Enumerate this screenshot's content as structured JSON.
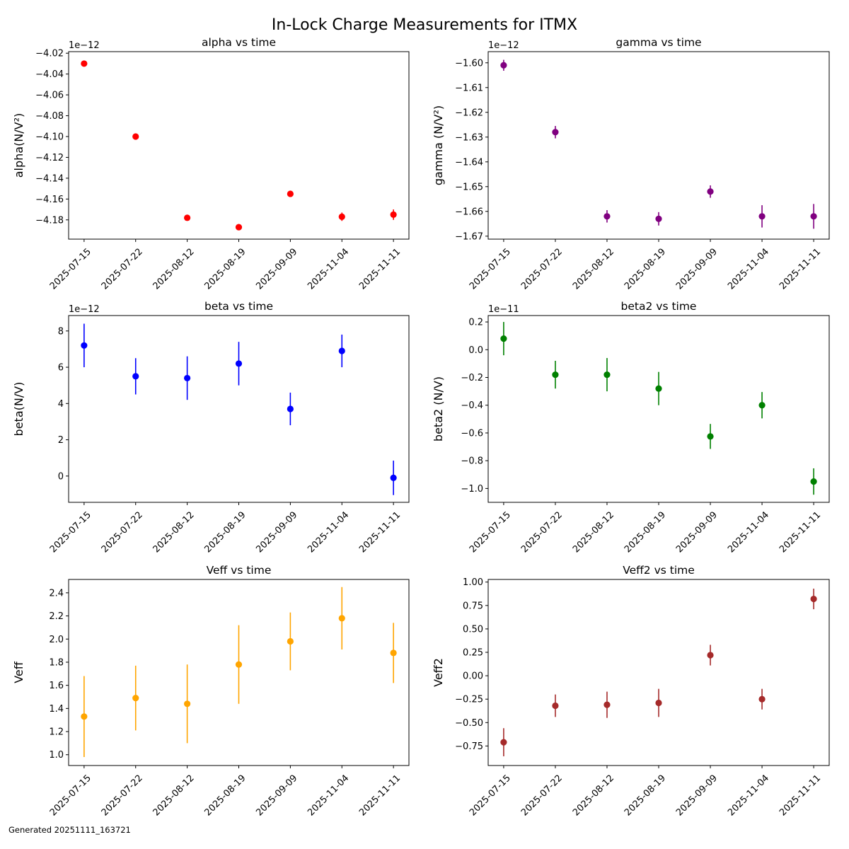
{
  "figure": {
    "title": "In-Lock Charge Measurements for ITMX",
    "footer": "Generated 20251111_163721"
  },
  "chart_data": [
    {
      "type": "scatter",
      "title": "alpha vs time",
      "xlabel": "",
      "ylabel": "alpha(N/V²)",
      "offset_label": "1e−12",
      "color": "#ff0000",
      "categories": [
        "2025-07-15",
        "2025-07-22",
        "2025-08-12",
        "2025-08-19",
        "2025-09-09",
        "2025-11-04",
        "2025-11-11"
      ],
      "values": [
        -4.03,
        -4.1,
        -4.178,
        -4.187,
        -4.155,
        -4.177,
        -4.175
      ],
      "errors": [
        0.0005,
        0.0005,
        0.001,
        0.0008,
        0.001,
        0.004,
        0.005
      ],
      "ylim": [
        -4.1985,
        -4.0185
      ],
      "yticks": [
        -4.18,
        -4.16,
        -4.14,
        -4.12,
        -4.1,
        -4.08,
        -4.06,
        -4.04,
        -4.02
      ],
      "ytick_labels": [
        "−4.18",
        "−4.16",
        "−4.14",
        "−4.12",
        "−4.10",
        "−4.08",
        "−4.06",
        "−4.04",
        "−4.02"
      ],
      "grid": false
    },
    {
      "type": "scatter",
      "title": "gamma vs time",
      "xlabel": "",
      "ylabel": "gamma (N/V²)",
      "offset_label": "1e−12",
      "color": "#800080",
      "categories": [
        "2025-07-15",
        "2025-07-22",
        "2025-08-12",
        "2025-08-19",
        "2025-09-09",
        "2025-11-04",
        "2025-11-11"
      ],
      "values": [
        -1.601,
        -1.628,
        -1.662,
        -1.663,
        -1.652,
        -1.662,
        -1.662
      ],
      "errors": [
        0.0022,
        0.0025,
        0.0025,
        0.0027,
        0.0025,
        0.0045,
        0.005
      ],
      "ylim": [
        -1.6712,
        -1.5955
      ],
      "yticks": [
        -1.67,
        -1.66,
        -1.65,
        -1.64,
        -1.63,
        -1.62,
        -1.61,
        -1.6
      ],
      "ytick_labels": [
        "−1.67",
        "−1.66",
        "−1.65",
        "−1.64",
        "−1.63",
        "−1.62",
        "−1.61",
        "−1.60"
      ],
      "grid": false
    },
    {
      "type": "scatter",
      "title": "beta vs time",
      "xlabel": "",
      "ylabel": "beta(N/V)",
      "offset_label": "1e−12",
      "color": "#0000ff",
      "categories": [
        "2025-07-15",
        "2025-07-22",
        "2025-08-12",
        "2025-08-19",
        "2025-09-09",
        "2025-11-04",
        "2025-11-11"
      ],
      "values": [
        7.2,
        5.5,
        5.4,
        6.2,
        3.7,
        6.9,
        -0.1
      ],
      "errors": [
        1.2,
        1.0,
        1.2,
        1.2,
        0.9,
        0.9,
        0.95
      ],
      "ylim": [
        -1.45,
        8.85
      ],
      "yticks": [
        0,
        2,
        4,
        6,
        8
      ],
      "ytick_labels": [
        "0",
        "2",
        "4",
        "6",
        "8"
      ],
      "grid": false
    },
    {
      "type": "scatter",
      "title": "beta2 vs time",
      "xlabel": "",
      "ylabel": "beta2 (N/V)",
      "offset_label": "1e−11",
      "color": "#008000",
      "categories": [
        "2025-07-15",
        "2025-07-22",
        "2025-08-12",
        "2025-08-19",
        "2025-09-09",
        "2025-11-04",
        "2025-11-11"
      ],
      "values": [
        0.08,
        -0.18,
        -0.18,
        -0.28,
        -0.625,
        -0.4,
        -0.95
      ],
      "errors": [
        0.12,
        0.1,
        0.12,
        0.12,
        0.09,
        0.095,
        0.095
      ],
      "ylim": [
        -1.1,
        0.2462
      ],
      "yticks": [
        -1.0,
        -0.8,
        -0.6,
        -0.4,
        -0.2,
        0.0,
        0.2
      ],
      "ytick_labels": [
        "−1.0",
        "−0.8",
        "−0.6",
        "−0.4",
        "−0.2",
        "0.0",
        "0.2"
      ],
      "grid": false
    },
    {
      "type": "scatter",
      "title": "Veff vs time",
      "xlabel": "",
      "ylabel": "Veff",
      "offset_label": "",
      "color": "#ffa500",
      "categories": [
        "2025-07-15",
        "2025-07-22",
        "2025-08-12",
        "2025-08-19",
        "2025-09-09",
        "2025-11-04",
        "2025-11-11"
      ],
      "values": [
        1.33,
        1.49,
        1.44,
        1.78,
        1.98,
        2.18,
        1.88
      ],
      "errors": [
        0.35,
        0.28,
        0.34,
        0.34,
        0.25,
        0.27,
        0.26
      ],
      "ylim": [
        0.9066,
        2.5155
      ],
      "yticks": [
        1.0,
        1.2,
        1.4,
        1.6,
        1.8,
        2.0,
        2.2,
        2.4
      ],
      "ytick_labels": [
        "1.0",
        "1.2",
        "1.4",
        "1.6",
        "1.8",
        "2.0",
        "2.2",
        "2.4"
      ],
      "grid": false
    },
    {
      "type": "scatter",
      "title": "Veff2 vs time",
      "xlabel": "",
      "ylabel": "Veff2",
      "offset_label": "",
      "color": "#a52a2a",
      "categories": [
        "2025-07-15",
        "2025-07-22",
        "2025-08-12",
        "2025-08-19",
        "2025-09-09",
        "2025-11-04",
        "2025-11-11"
      ],
      "values": [
        -0.71,
        -0.32,
        -0.31,
        -0.29,
        0.22,
        -0.25,
        0.82
      ],
      "errors": [
        0.15,
        0.12,
        0.14,
        0.15,
        0.11,
        0.11,
        0.11
      ],
      "ylim": [
        -0.9585,
        1.0281
      ],
      "yticks": [
        -0.75,
        -0.5,
        -0.25,
        0.0,
        0.25,
        0.5,
        0.75,
        1.0
      ],
      "ytick_labels": [
        "−0.75",
        "−0.50",
        "−0.25",
        "0.00",
        "0.25",
        "0.50",
        "0.75",
        "1.00"
      ],
      "grid": false
    }
  ]
}
